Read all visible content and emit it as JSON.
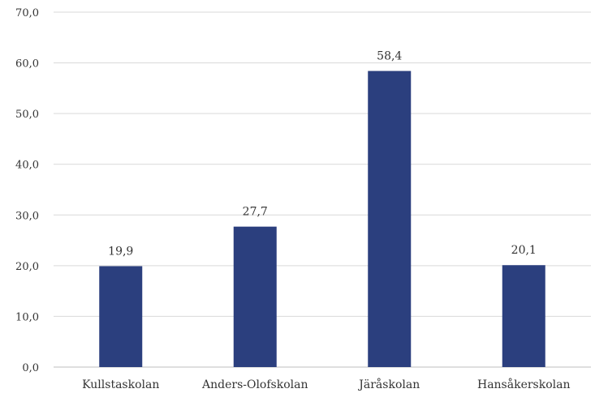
{
  "chart_data": {
    "type": "bar",
    "categories": [
      "Kullstaskolan",
      "Anders-Olofskolan",
      "Järåskolan",
      "Hansåkerskolan"
    ],
    "values": [
      19.9,
      27.7,
      58.4,
      20.1
    ],
    "value_labels": [
      "19,9",
      "27,7",
      "58,4",
      "20,1"
    ],
    "yticks": [
      "0,0",
      "10,0",
      "20,0",
      "30,0",
      "40,0",
      "50,0",
      "60,0",
      "70,0"
    ],
    "ylim": [
      0,
      70
    ],
    "grid": true,
    "bar_color": "#2b3f7e"
  }
}
